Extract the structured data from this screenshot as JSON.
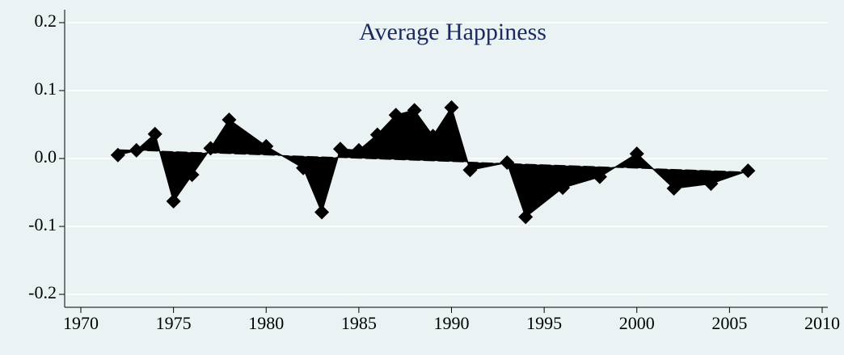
{
  "chart_data": {
    "type": "line",
    "title": "Average Happiness",
    "x": [
      1972,
      1973,
      1974,
      1975,
      1976,
      1977,
      1978,
      1980,
      1982,
      1983,
      1984,
      1985,
      1986,
      1987,
      1988,
      1989,
      1990,
      1991,
      1993,
      1994,
      1996,
      1998,
      2000,
      2002,
      2004,
      2006
    ],
    "series": [
      {
        "color": "#000000",
        "values": [
          0.005,
          0.012,
          0.036,
          -0.063,
          -0.024,
          0.015,
          0.057,
          0.018,
          -0.014,
          -0.079,
          0.014,
          0.012,
          0.035,
          0.064,
          0.071,
          0.033,
          0.075,
          -0.017,
          -0.006,
          -0.086,
          -0.043,
          -0.027,
          0.007,
          -0.044,
          -0.037,
          -0.018
        ]
      }
    ],
    "trend": {
      "x": [
        1972,
        2006
      ],
      "values": [
        0.013,
        -0.02
      ],
      "color": "#000000"
    },
    "xlim": [
      1970,
      2010
    ],
    "xticks": [
      1970,
      1975,
      1980,
      1985,
      1990,
      1995,
      2000,
      2005,
      2010
    ],
    "ylim": [
      -0.2,
      0.2
    ],
    "yticks": [
      -0.2,
      -0.1,
      {
        "value": 0,
        "label": "0.0"
      },
      0.1,
      0.2
    ],
    "grid": true
  }
}
